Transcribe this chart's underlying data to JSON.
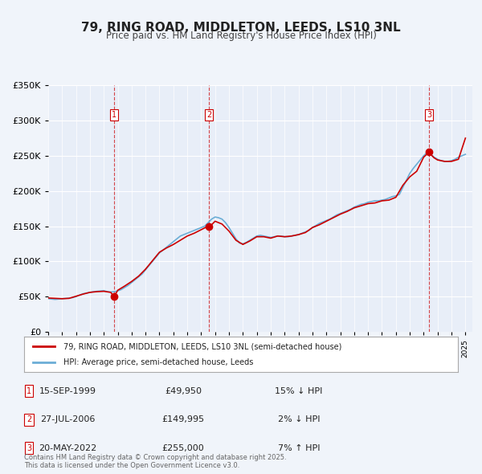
{
  "title": "79, RING ROAD, MIDDLETON, LEEDS, LS10 3NL",
  "subtitle": "Price paid vs. HM Land Registry's House Price Index (HPI)",
  "background_color": "#f0f4fa",
  "plot_bg_color": "#e8eef8",
  "legend_line1": "79, RING ROAD, MIDDLETON, LEEDS, LS10 3NL (semi-detached house)",
  "legend_line2": "HPI: Average price, semi-detached house, Leeds",
  "footer": "Contains HM Land Registry data © Crown copyright and database right 2025.\nThis data is licensed under the Open Government Licence v3.0.",
  "transactions": [
    {
      "num": 1,
      "date": "15-SEP-1999",
      "price": 49950,
      "pct": "15%",
      "dir": "↓",
      "year": 1999.71
    },
    {
      "num": 2,
      "date": "27-JUL-2006",
      "price": 149995,
      "pct": "2%",
      "dir": "↓",
      "year": 2006.57
    },
    {
      "num": 3,
      "date": "20-MAY-2022",
      "price": 255000,
      "pct": "7%",
      "dir": "↑",
      "year": 2022.38
    }
  ],
  "hpi_color": "#6baed6",
  "price_color": "#cc0000",
  "dashed_line_color": "#cc0000",
  "ylim": [
    0,
    350000
  ],
  "yticks": [
    0,
    50000,
    100000,
    150000,
    200000,
    250000,
    300000,
    350000
  ],
  "ytick_labels": [
    "£0",
    "£50K",
    "£100K",
    "£150K",
    "£200K",
    "£250K",
    "£300K",
    "£350K"
  ],
  "xlim_start": 1995.0,
  "xlim_end": 2025.5,
  "hpi_data_years": [
    1995.0,
    1995.25,
    1995.5,
    1995.75,
    1996.0,
    1996.25,
    1996.5,
    1996.75,
    1997.0,
    1997.25,
    1997.5,
    1997.75,
    1998.0,
    1998.25,
    1998.5,
    1998.75,
    1999.0,
    1999.25,
    1999.5,
    1999.75,
    2000.0,
    2000.25,
    2000.5,
    2000.75,
    2001.0,
    2001.25,
    2001.5,
    2001.75,
    2002.0,
    2002.25,
    2002.5,
    2002.75,
    2003.0,
    2003.25,
    2003.5,
    2003.75,
    2004.0,
    2004.25,
    2004.5,
    2004.75,
    2005.0,
    2005.25,
    2005.5,
    2005.75,
    2006.0,
    2006.25,
    2006.5,
    2006.75,
    2007.0,
    2007.25,
    2007.5,
    2007.75,
    2008.0,
    2008.25,
    2008.5,
    2008.75,
    2009.0,
    2009.25,
    2009.5,
    2009.75,
    2010.0,
    2010.25,
    2010.5,
    2010.75,
    2011.0,
    2011.25,
    2011.5,
    2011.75,
    2012.0,
    2012.25,
    2012.5,
    2012.75,
    2013.0,
    2013.25,
    2013.5,
    2013.75,
    2014.0,
    2014.25,
    2014.5,
    2014.75,
    2015.0,
    2015.25,
    2015.5,
    2015.75,
    2016.0,
    2016.25,
    2016.5,
    2016.75,
    2017.0,
    2017.25,
    2017.5,
    2017.75,
    2018.0,
    2018.25,
    2018.5,
    2018.75,
    2019.0,
    2019.25,
    2019.5,
    2019.75,
    2020.0,
    2020.25,
    2020.5,
    2020.75,
    2021.0,
    2021.25,
    2021.5,
    2021.75,
    2022.0,
    2022.25,
    2022.5,
    2022.75,
    2023.0,
    2023.25,
    2023.5,
    2023.75,
    2024.0,
    2024.25,
    2024.5,
    2024.75,
    2025.0
  ],
  "hpi_values": [
    47000,
    46500,
    46000,
    46500,
    47000,
    47500,
    48000,
    48500,
    50000,
    52000,
    54000,
    55000,
    56000,
    57000,
    57500,
    58000,
    58500,
    57000,
    56500,
    57000,
    58000,
    60000,
    63000,
    66000,
    70000,
    74000,
    78000,
    82000,
    88000,
    94000,
    100000,
    106000,
    112000,
    116000,
    120000,
    124000,
    128000,
    132000,
    136000,
    138000,
    140000,
    142000,
    144000,
    146000,
    148000,
    150000,
    155000,
    160000,
    163000,
    162000,
    160000,
    155000,
    148000,
    140000,
    132000,
    126000,
    125000,
    127000,
    130000,
    133000,
    136000,
    137000,
    136000,
    135000,
    134000,
    135000,
    136000,
    136000,
    135000,
    135000,
    136000,
    137000,
    138000,
    140000,
    142000,
    144000,
    148000,
    151000,
    154000,
    156000,
    158000,
    160000,
    163000,
    166000,
    168000,
    170000,
    172000,
    174000,
    177000,
    179000,
    181000,
    182000,
    184000,
    185000,
    186000,
    186000,
    187000,
    188000,
    190000,
    192000,
    193000,
    195000,
    205000,
    215000,
    225000,
    232000,
    238000,
    244000,
    250000,
    255000,
    252000,
    248000,
    245000,
    243000,
    242000,
    242000,
    243000,
    245000,
    248000,
    250000,
    252000
  ],
  "price_line_data_years": [
    1995.0,
    1995.5,
    1996.0,
    1996.5,
    1997.0,
    1997.5,
    1998.0,
    1998.5,
    1999.0,
    1999.5,
    1999.71,
    1999.75,
    2000.0,
    2000.5,
    2001.0,
    2001.5,
    2002.0,
    2002.5,
    2003.0,
    2003.5,
    2004.0,
    2004.5,
    2005.0,
    2005.5,
    2006.0,
    2006.5,
    2006.57,
    2006.75,
    2007.0,
    2007.5,
    2008.0,
    2008.5,
    2009.0,
    2009.5,
    2010.0,
    2010.5,
    2011.0,
    2011.5,
    2012.0,
    2012.5,
    2013.0,
    2013.5,
    2014.0,
    2014.5,
    2015.0,
    2015.5,
    2016.0,
    2016.5,
    2017.0,
    2017.5,
    2018.0,
    2018.5,
    2019.0,
    2019.5,
    2020.0,
    2020.5,
    2021.0,
    2021.5,
    2022.0,
    2022.38,
    2022.5,
    2022.75,
    2023.0,
    2023.5,
    2024.0,
    2024.5,
    2025.0
  ],
  "price_line_values": [
    48000,
    47500,
    47000,
    47500,
    50500,
    53500,
    56000,
    57000,
    57500,
    56000,
    49950,
    50500,
    59000,
    65000,
    71500,
    79000,
    89000,
    101000,
    113000,
    119000,
    124000,
    130000,
    136000,
    140000,
    145000,
    149995,
    149995,
    152000,
    157000,
    153000,
    143000,
    130000,
    124000,
    129000,
    135000,
    135000,
    133000,
    136000,
    135000,
    136000,
    138000,
    141000,
    148000,
    152000,
    157000,
    162000,
    167000,
    171000,
    176000,
    179000,
    182000,
    183000,
    186000,
    187000,
    191000,
    208000,
    220000,
    228000,
    248000,
    255000,
    252000,
    247000,
    244000,
    242000,
    242000,
    245000,
    275000
  ]
}
